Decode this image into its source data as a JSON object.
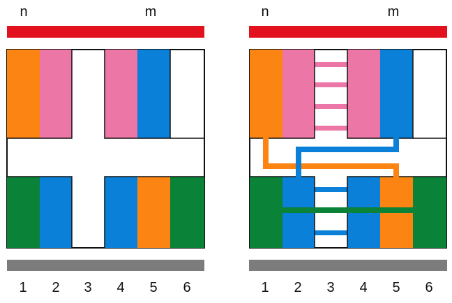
{
  "colors": {
    "orange": "#fb8412",
    "pink": "#ec76a6",
    "blue": "#0a80d8",
    "green": "#0a8238",
    "red": "#e3101e",
    "gray": "#7c7c7c",
    "outline": "#111111"
  },
  "panels": [
    {
      "top_labels": [
        "n",
        "m"
      ],
      "top_row": [
        "orange",
        "pink",
        "white",
        "pink",
        "blue",
        "white"
      ],
      "bottom_row": [
        "green",
        "blue",
        "white",
        "blue",
        "orange",
        "green"
      ],
      "column_labels": [
        "1",
        "2",
        "3",
        "4",
        "5",
        "6"
      ],
      "connected": false
    },
    {
      "top_labels": [
        "n",
        "m"
      ],
      "top_row": [
        "orange",
        "pink",
        "white",
        "pink",
        "blue",
        "white"
      ],
      "bottom_row": [
        "green",
        "blue",
        "white",
        "blue",
        "orange",
        "green"
      ],
      "column_labels": [
        "1",
        "2",
        "3",
        "4",
        "5",
        "6"
      ],
      "connected": true,
      "links": [
        "pink-ladder",
        "blue-ladder",
        "green-bar",
        "orange-path",
        "blue-path"
      ]
    }
  ]
}
